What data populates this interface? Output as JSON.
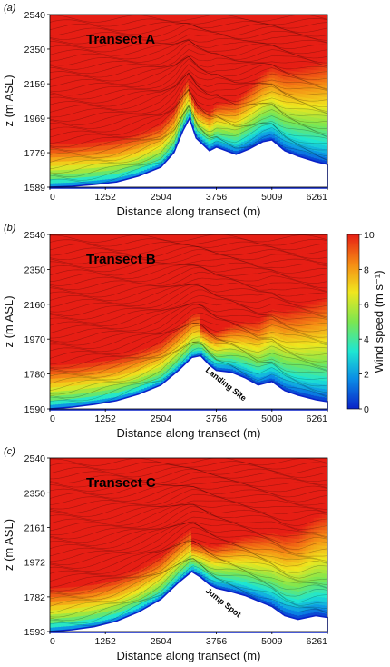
{
  "colorbar": {
    "label": "Wind speed (m s⁻¹)",
    "ticks": [
      "0",
      "2",
      "4",
      "6",
      "8",
      "10"
    ],
    "range": [
      0,
      10
    ],
    "colors": [
      "#0a22c8",
      "#0aa0e6",
      "#1ee6c8",
      "#8ee63c",
      "#f0e61e",
      "#f58c14",
      "#e61e14"
    ]
  },
  "chart_data": [
    {
      "type": "heatmap",
      "panel_label": "(a)",
      "title": "Transect A",
      "annotation": "",
      "xlabel": "Distance along transect (m)",
      "ylabel": "z (m ASL)",
      "x_ticks": [
        "0",
        "1252",
        "2504",
        "3756",
        "5009",
        "6261"
      ],
      "y_ticks": [
        "1589",
        "1779",
        "1969",
        "2159",
        "2350",
        "2540"
      ],
      "xlim": [
        0,
        6261
      ],
      "ylim": [
        1589,
        2540
      ],
      "terrain": {
        "x": [
          0,
          500,
          1000,
          1500,
          2000,
          2504,
          2800,
          3000,
          3150,
          3300,
          3600,
          3756,
          4200,
          4500,
          4800,
          5009,
          5300,
          5600,
          6000,
          6261
        ],
        "z": [
          1589,
          1594,
          1604,
          1618,
          1650,
          1700,
          1780,
          1900,
          1969,
          1860,
          1790,
          1810,
          1770,
          1800,
          1840,
          1850,
          1790,
          1760,
          1730,
          1715
        ]
      }
    },
    {
      "type": "heatmap",
      "panel_label": "(b)",
      "title": "Transect B",
      "annotation": "Landing Site",
      "xlabel": "Distance along transect (m)",
      "ylabel": "z (m ASL)",
      "x_ticks": [
        "0",
        "1252",
        "2504",
        "3756",
        "5009",
        "6261"
      ],
      "y_ticks": [
        "1590",
        "1780",
        "1970",
        "2160",
        "2350",
        "2540"
      ],
      "xlim": [
        0,
        6261
      ],
      "ylim": [
        1590,
        2540
      ],
      "terrain": {
        "x": [
          0,
          500,
          1000,
          1500,
          2000,
          2504,
          2900,
          3200,
          3400,
          3600,
          3756,
          4100,
          4400,
          4700,
          5009,
          5300,
          5600,
          6000,
          6261
        ],
        "z": [
          1590,
          1600,
          1615,
          1635,
          1670,
          1720,
          1800,
          1870,
          1880,
          1830,
          1800,
          1790,
          1760,
          1720,
          1740,
          1690,
          1665,
          1640,
          1630
        ]
      }
    },
    {
      "type": "heatmap",
      "panel_label": "(c)",
      "title": "Transect C",
      "annotation": "Jump Spot",
      "xlabel": "Distance along transect (m)",
      "ylabel": "z (m ASL)",
      "x_ticks": [
        "0",
        "1252",
        "2504",
        "3756",
        "5009",
        "6261"
      ],
      "y_ticks": [
        "1593",
        "1782",
        "1972",
        "2161",
        "2350",
        "2540"
      ],
      "xlim": [
        0,
        6261
      ],
      "ylim": [
        1593,
        2540
      ],
      "terrain": {
        "x": [
          0,
          500,
          1000,
          1500,
          2000,
          2504,
          2900,
          3200,
          3400,
          3600,
          3756,
          4100,
          4400,
          4700,
          5009,
          5300,
          5600,
          6000,
          6261
        ],
        "z": [
          1593,
          1603,
          1620,
          1650,
          1700,
          1770,
          1860,
          1920,
          1890,
          1850,
          1830,
          1810,
          1790,
          1760,
          1730,
          1680,
          1660,
          1680,
          1670
        ]
      }
    }
  ]
}
